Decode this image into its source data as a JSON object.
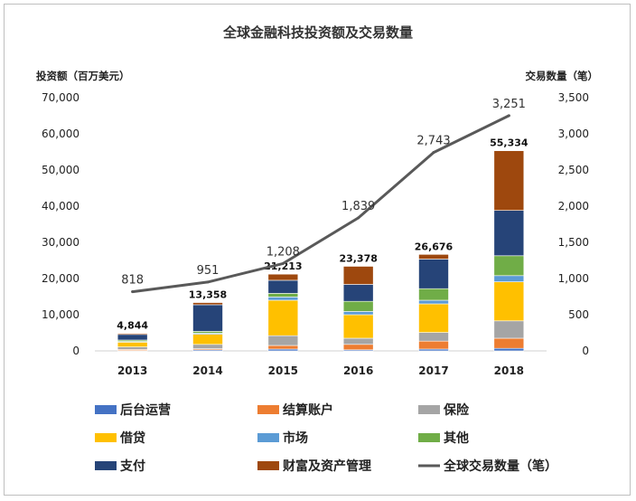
{
  "chart_data": {
    "type": "bar",
    "title": "全球金融科技投资额及交易数量",
    "ylabel": "投资额（百万美元）",
    "y2label": "交易数量（笔）",
    "ylim": [
      0,
      70000
    ],
    "y2lim": [
      0,
      3500
    ],
    "yticks": [
      "0",
      "10,000",
      "20,000",
      "30,000",
      "40,000",
      "50,000",
      "60,000",
      "70,000"
    ],
    "y2ticks": [
      "0",
      "500",
      "1,000",
      "1,500",
      "2,000",
      "2,500",
      "3,000",
      "3,500"
    ],
    "categories": [
      "2013",
      "2014",
      "2015",
      "2016",
      "2017",
      "2018"
    ],
    "stacked": true,
    "series": [
      {
        "name": "后台运营",
        "color": "#4472C4",
        "values": [
          100,
          300,
          500,
          300,
          500,
          700
        ]
      },
      {
        "name": "结算账户",
        "color": "#ED7D31",
        "values": [
          300,
          300,
          1000,
          1500,
          2200,
          2800
        ]
      },
      {
        "name": "保险",
        "color": "#A5A5A5",
        "values": [
          700,
          1200,
          2700,
          1700,
          2400,
          4800
        ]
      },
      {
        "name": "借贷",
        "color": "#FFC000",
        "values": [
          1300,
          2800,
          9800,
          6500,
          7900,
          10800
        ]
      },
      {
        "name": "市场",
        "color": "#5B9BD5",
        "values": [
          200,
          300,
          900,
          900,
          1000,
          1700
        ]
      },
      {
        "name": "其他",
        "color": "#70AD47",
        "values": [
          400,
          500,
          1000,
          2800,
          3200,
          5500
        ]
      },
      {
        "name": "支付",
        "color": "#264478",
        "values": [
          1544,
          7358,
          3613,
          4678,
          8176,
          12534
        ]
      },
      {
        "name": "财富及资产管理",
        "color": "#9E480E",
        "values": [
          300,
          600,
          1700,
          5000,
          1300,
          16500
        ]
      }
    ],
    "totals": [
      4844,
      13358,
      21213,
      23378,
      26676,
      55334
    ],
    "total_labels": [
      "4,844",
      "13,358",
      "21,213",
      "23,378",
      "26,676",
      "55,334"
    ],
    "line": {
      "name": "全球交易数量（笔）",
      "color": "#595959",
      "axis": "right",
      "values": [
        818,
        951,
        1208,
        1839,
        2743,
        3251
      ],
      "labels": [
        "818",
        "951",
        "1,208",
        "1,839",
        "2,743",
        "3,251"
      ]
    },
    "legend": {
      "position": "bottom",
      "items": [
        {
          "label": "后台运营",
          "color": "#4472C4",
          "kind": "box"
        },
        {
          "label": "结算账户",
          "color": "#ED7D31",
          "kind": "box"
        },
        {
          "label": "保险",
          "color": "#A5A5A5",
          "kind": "box"
        },
        {
          "label": "借贷",
          "color": "#FFC000",
          "kind": "box"
        },
        {
          "label": "市场",
          "color": "#5B9BD5",
          "kind": "box"
        },
        {
          "label": "其他",
          "color": "#70AD47",
          "kind": "box"
        },
        {
          "label": "支付",
          "color": "#264478",
          "kind": "box"
        },
        {
          "label": "财富及资产管理",
          "color": "#9E480E",
          "kind": "box"
        },
        {
          "label": "全球交易数量（笔）",
          "color": "#595959",
          "kind": "line"
        }
      ]
    }
  }
}
